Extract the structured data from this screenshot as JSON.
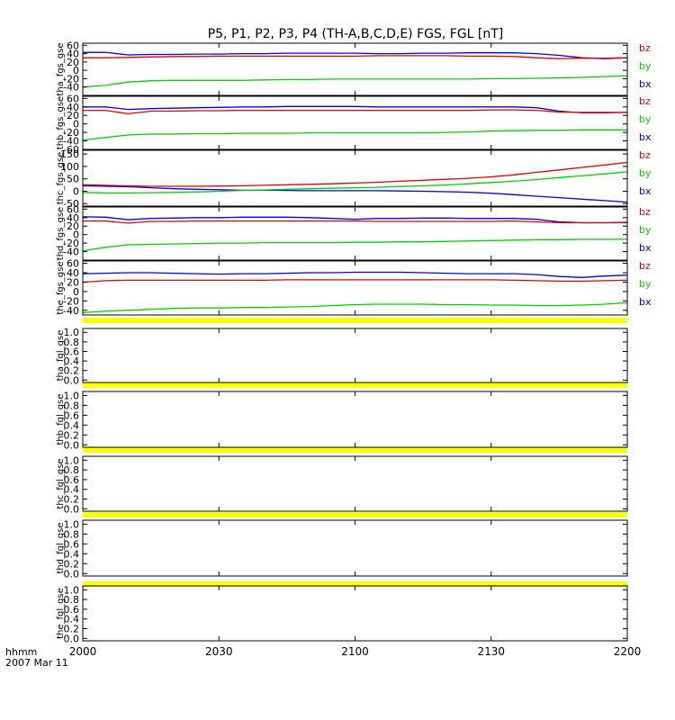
{
  "title": "P5, P1, P2, P3, P4 (TH-A,B,C,D,E) FGS, FGL [nT]",
  "time_axis": {
    "ticks": [
      "2000",
      "2030",
      "2100",
      "2130",
      "2200"
    ],
    "label_line1": "hhmm",
    "label_line2": "2007 Mar 11"
  },
  "colors": {
    "bx": "#0000e0",
    "by": "#00d000",
    "bz": "#e00000",
    "band": "#ffff00"
  },
  "chart_data": [
    {
      "type": "line",
      "panel": "tha_fgs_gse",
      "ylabel": "tha_fgs_gse",
      "ylim": [
        -60,
        65
      ],
      "yticks": [
        "60",
        "40",
        "20",
        "0",
        "-20",
        "-40"
      ],
      "x": [
        0,
        5,
        10,
        15,
        20,
        25,
        30,
        35,
        40,
        45,
        50,
        55,
        60,
        65,
        70,
        75,
        80,
        85,
        90,
        95,
        100,
        105,
        110,
        115,
        120
      ],
      "series": [
        {
          "name": "bx",
          "values": [
            43,
            43,
            37,
            38,
            38,
            39,
            39,
            40,
            40,
            41,
            41,
            41,
            41,
            40,
            40,
            41,
            41,
            42,
            42,
            42,
            40,
            36,
            30,
            28,
            30
          ]
        },
        {
          "name": "by",
          "values": [
            -40,
            -36,
            -28,
            -25,
            -24,
            -24,
            -24,
            -24,
            -23,
            -22,
            -22,
            -21,
            -21,
            -21,
            -21,
            -21,
            -21,
            -21,
            -20,
            -20,
            -19,
            -18,
            -17,
            -15,
            -13
          ]
        },
        {
          "name": "bz",
          "values": [
            30,
            30,
            31,
            32,
            33,
            33,
            34,
            34,
            34,
            34,
            34,
            34,
            34,
            35,
            35,
            35,
            35,
            34,
            34,
            33,
            30,
            28,
            29,
            29,
            30
          ]
        }
      ]
    },
    {
      "type": "line",
      "panel": "thb_fgs_gse",
      "ylabel": "thb_fgs_gse",
      "ylim": [
        -60,
        65
      ],
      "yticks": [
        "60",
        "40",
        "20",
        "0",
        "-20",
        "-40",
        "-60"
      ],
      "x": [
        0,
        5,
        10,
        15,
        20,
        25,
        30,
        35,
        40,
        45,
        50,
        55,
        60,
        65,
        70,
        75,
        80,
        85,
        90,
        95,
        100,
        105,
        110,
        115,
        120
      ],
      "series": [
        {
          "name": "bx",
          "values": [
            40,
            40,
            34,
            36,
            37,
            38,
            39,
            40,
            40,
            41,
            41,
            41,
            41,
            40,
            40,
            40,
            40,
            40,
            40,
            40,
            38,
            30,
            26,
            26,
            27
          ]
        },
        {
          "name": "by",
          "values": [
            -38,
            -32,
            -26,
            -24,
            -24,
            -23,
            -23,
            -22,
            -22,
            -22,
            -21,
            -21,
            -21,
            -21,
            -21,
            -21,
            -20,
            -19,
            -17,
            -16,
            -15,
            -15,
            -14,
            -14,
            -14
          ]
        },
        {
          "name": "bz",
          "values": [
            32,
            32,
            24,
            30,
            30,
            31,
            31,
            32,
            32,
            32,
            32,
            32,
            32,
            32,
            32,
            32,
            32,
            32,
            33,
            33,
            32,
            28,
            27,
            27,
            27
          ]
        }
      ]
    },
    {
      "type": "line",
      "panel": "thc_fgs_gse",
      "ylabel": "thc_fgs_gse",
      "ylim": [
        -60,
        165
      ],
      "yticks": [
        "150",
        "100",
        "50",
        "0",
        "-50"
      ],
      "x": [
        0,
        5,
        10,
        15,
        20,
        25,
        30,
        35,
        40,
        45,
        50,
        55,
        60,
        65,
        70,
        75,
        80,
        85,
        90,
        95,
        100,
        105,
        110,
        115,
        120
      ],
      "series": [
        {
          "name": "bx",
          "values": [
            22,
            20,
            18,
            14,
            10,
            8,
            6,
            4,
            4,
            3,
            2,
            2,
            2,
            2,
            1,
            0,
            -2,
            -4,
            -8,
            -14,
            -20,
            -26,
            -32,
            -38,
            -44
          ]
        },
        {
          "name": "by",
          "values": [
            -5,
            -7,
            -7,
            -6,
            -5,
            -3,
            0,
            3,
            5,
            8,
            10,
            12,
            14,
            16,
            19,
            22,
            25,
            30,
            35,
            40,
            47,
            55,
            62,
            70,
            78
          ]
        },
        {
          "name": "bz",
          "values": [
            26,
            24,
            22,
            20,
            20,
            20,
            21,
            22,
            24,
            26,
            28,
            30,
            33,
            36,
            40,
            44,
            48,
            52,
            58,
            66,
            76,
            86,
            96,
            106,
            116
          ]
        }
      ]
    },
    {
      "type": "line",
      "panel": "thd_fgs_gse",
      "ylabel": "thd_fgs_gse",
      "ylim": [
        -60,
        65
      ],
      "yticks": [
        "60",
        "40",
        "20",
        "0",
        "-20",
        "-40"
      ],
      "x": [
        0,
        5,
        10,
        15,
        20,
        25,
        30,
        35,
        40,
        45,
        50,
        55,
        60,
        65,
        70,
        75,
        80,
        85,
        90,
        95,
        100,
        105,
        110,
        115,
        120
      ],
      "series": [
        {
          "name": "bx",
          "values": [
            42,
            41,
            35,
            38,
            39,
            40,
            40,
            41,
            41,
            41,
            40,
            38,
            36,
            38,
            38,
            39,
            39,
            38,
            38,
            38,
            36,
            30,
            28,
            28,
            29
          ]
        },
        {
          "name": "by",
          "values": [
            -38,
            -30,
            -24,
            -23,
            -22,
            -21,
            -20,
            -20,
            -19,
            -19,
            -19,
            -19,
            -18,
            -18,
            -17,
            -17,
            -16,
            -15,
            -14,
            -13,
            -12,
            -12,
            -11,
            -11,
            -11
          ]
        },
        {
          "name": "bz",
          "values": [
            32,
            32,
            27,
            31,
            31,
            32,
            32,
            32,
            32,
            32,
            32,
            32,
            32,
            31,
            31,
            31,
            31,
            31,
            31,
            32,
            30,
            28,
            28,
            28,
            28
          ]
        }
      ]
    },
    {
      "type": "line",
      "panel": "the_fgs_gse",
      "ylabel": "the_fgs_gse",
      "ylim": [
        -50,
        65
      ],
      "yticks": [
        "60",
        "40",
        "20",
        "0",
        "-20",
        "-40"
      ],
      "x": [
        0,
        5,
        10,
        15,
        20,
        25,
        30,
        35,
        40,
        45,
        50,
        55,
        60,
        65,
        70,
        75,
        80,
        85,
        90,
        95,
        100,
        105,
        110,
        115,
        120
      ],
      "series": [
        {
          "name": "bx",
          "values": [
            38,
            39,
            40,
            40,
            39,
            38,
            37,
            38,
            38,
            39,
            40,
            40,
            41,
            41,
            41,
            40,
            39,
            38,
            38,
            38,
            36,
            32,
            30,
            33,
            35
          ]
        },
        {
          "name": "by",
          "values": [
            -45,
            -42,
            -40,
            -38,
            -36,
            -35,
            -35,
            -34,
            -34,
            -33,
            -32,
            -30,
            -28,
            -27,
            -27,
            -27,
            -28,
            -28,
            -29,
            -29,
            -30,
            -30,
            -29,
            -27,
            -24
          ]
        },
        {
          "name": "bz",
          "values": [
            20,
            23,
            24,
            24,
            24,
            24,
            24,
            24,
            24,
            25,
            25,
            25,
            25,
            25,
            25,
            25,
            25,
            25,
            25,
            24,
            23,
            22,
            22,
            23,
            24
          ]
        }
      ]
    },
    {
      "type": "line",
      "panel": "tha_fgl_gse",
      "ylabel": "tha_fgl_gse",
      "ylim": [
        -0.05,
        1.08
      ],
      "yticks": [
        "1.0",
        "0.8",
        "0.6",
        "0.4",
        "0.2",
        "0.0"
      ],
      "series": []
    },
    {
      "type": "line",
      "panel": "thb_fgl_gse",
      "ylabel": "thb_fgl_gse",
      "ylim": [
        -0.05,
        1.08
      ],
      "yticks": [
        "1.0",
        "0.8",
        "0.6",
        "0.4",
        "0.2",
        "0.0"
      ],
      "series": []
    },
    {
      "type": "line",
      "panel": "thc_fgl_gse",
      "ylabel": "thc_fgl_gse",
      "ylim": [
        -0.05,
        1.08
      ],
      "yticks": [
        "1.0",
        "0.8",
        "0.6",
        "0.4",
        "0.2",
        "0.0"
      ],
      "series": []
    },
    {
      "type": "line",
      "panel": "thd_fgl_gse",
      "ylabel": "thd_fgl_gse",
      "ylim": [
        -0.05,
        1.08
      ],
      "yticks": [
        "1.0",
        "0.8",
        "0.6",
        "0.4",
        "0.2",
        "0.0"
      ],
      "series": []
    },
    {
      "type": "line",
      "panel": "the_fgl_gse",
      "ylabel": "the_fgl_gse",
      "ylim": [
        -0.05,
        1.08
      ],
      "yticks": [
        "1.0",
        "0.8",
        "0.6",
        "0.4",
        "0.2",
        "0.0"
      ],
      "series": []
    }
  ]
}
